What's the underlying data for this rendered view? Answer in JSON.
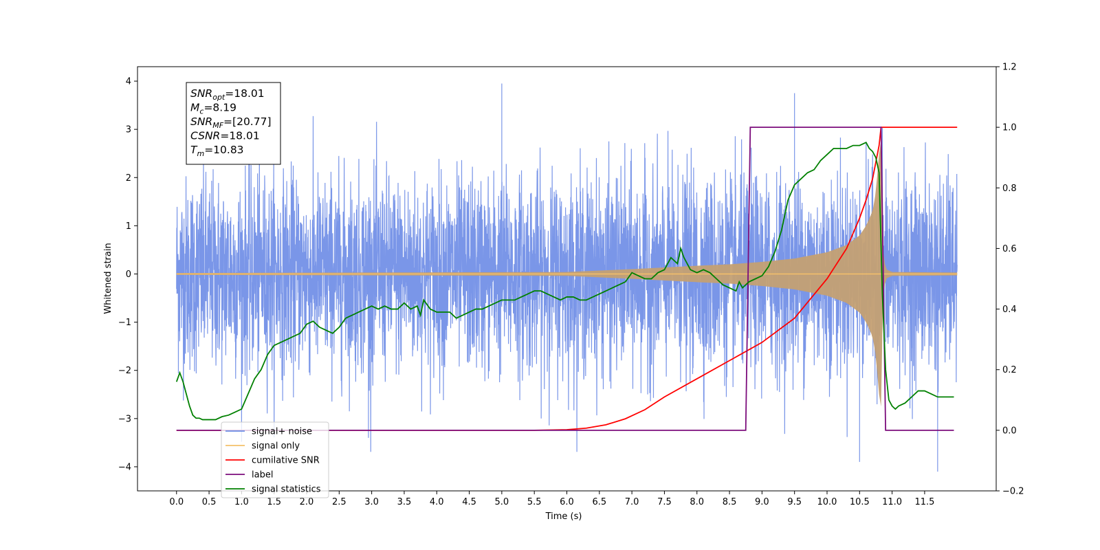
{
  "chart_data": {
    "type": "line",
    "title": "",
    "xlabel": "Time (s)",
    "ylabel_left": "Whitened strain",
    "ylabel_right": "",
    "xlim": [
      -0.6,
      12.6
    ],
    "ylim_left": [
      -4.5,
      4.3
    ],
    "ylim_right": [
      -0.2,
      1.2
    ],
    "x_ticks": [
      0.0,
      0.5,
      1.0,
      1.5,
      2.0,
      2.5,
      3.0,
      3.5,
      4.0,
      4.5,
      5.0,
      5.5,
      6.0,
      6.5,
      7.0,
      7.5,
      8.0,
      8.5,
      9.0,
      9.5,
      10.0,
      10.5,
      11.0,
      11.5
    ],
    "x_tick_labels": [
      "0.0",
      "0.5",
      "1.0",
      "1.5",
      "2.0",
      "2.5",
      "3.0",
      "3.5",
      "4.0",
      "4.5",
      "5.0",
      "5.5",
      "6.0",
      "6.5",
      "7.0",
      "7.5",
      "8.0",
      "8.5",
      "9.0",
      "9.5",
      "10.0",
      "10.5",
      "11.0",
      "11.5"
    ],
    "y_left_ticks": [
      -4,
      -3,
      -2,
      -1,
      0,
      1,
      2,
      3,
      4
    ],
    "y_left_tick_labels": [
      "−4",
      "−3",
      "−2",
      "−1",
      "0",
      "1",
      "2",
      "3",
      "4"
    ],
    "y_right_ticks": [
      -0.2,
      0.0,
      0.2,
      0.4,
      0.6,
      0.8,
      1.0,
      1.2
    ],
    "y_right_tick_labels": [
      "−0.2",
      "0.0",
      "0.2",
      "0.4",
      "0.6",
      "0.8",
      "1.0",
      "1.2"
    ],
    "grid": false,
    "legend_position": "lower-left",
    "annotation": {
      "lines": [
        {
          "sym": "SNR",
          "sub": "opt",
          "val": "=18.01"
        },
        {
          "sym": "M",
          "sub": "c",
          "val": "=8.19"
        },
        {
          "sym": "SNR",
          "sub": "MF",
          "val": "=[20.77]"
        },
        {
          "sym": "CSNR",
          "sub": "",
          "val": "=18.01"
        },
        {
          "sym": "T",
          "sub": "m",
          "val": "=10.83"
        }
      ]
    },
    "series": [
      {
        "name": "signal+ noise",
        "axis": "left",
        "color": "#6c8be5",
        "kind": "noise",
        "x_range": [
          0.0,
          12.0
        ],
        "sigma": 1.0,
        "shown_min": -4.1,
        "shown_max": 3.95,
        "notable_peaks": [
          [
            5.0,
            3.95
          ],
          [
            9.5,
            3.75
          ],
          [
            10.85,
            3.05
          ],
          [
            11.7,
            -4.1
          ],
          [
            10.5,
            -3.9
          ],
          [
            2.95,
            -3.4
          ]
        ]
      },
      {
        "name": "signal only",
        "axis": "left",
        "color": "#f5c06a",
        "kind": "chirp",
        "merger_time": 10.83,
        "envelope": {
          "x": [
            0.0,
            6.0,
            7.0,
            8.0,
            8.5,
            9.0,
            9.5,
            10.0,
            10.3,
            10.5,
            10.6,
            10.7,
            10.75,
            10.8,
            10.83,
            10.86,
            10.9,
            11.0,
            12.0
          ],
          "y": [
            0.02,
            0.04,
            0.1,
            0.17,
            0.2,
            0.25,
            0.32,
            0.45,
            0.6,
            0.8,
            1.0,
            1.3,
            1.7,
            2.5,
            2.75,
            0.5,
            0.1,
            0.04,
            0.03
          ]
        }
      },
      {
        "name": "cumilative SNR",
        "axis": "right",
        "color": "#ff0000",
        "x": [
          0.0,
          5.5,
          6.0,
          6.3,
          6.6,
          6.9,
          7.2,
          7.5,
          8.0,
          8.5,
          9.0,
          9.5,
          10.0,
          10.3,
          10.5,
          10.6,
          10.7,
          10.8,
          10.83,
          12.0
        ],
        "y": [
          0.0,
          0.0,
          0.002,
          0.007,
          0.018,
          0.038,
          0.068,
          0.11,
          0.17,
          0.23,
          0.29,
          0.37,
          0.5,
          0.6,
          0.7,
          0.76,
          0.83,
          0.94,
          1.0,
          1.0
        ]
      },
      {
        "name": "label",
        "axis": "right",
        "color": "#7b0c7b",
        "x": [
          0.0,
          8.75,
          8.82,
          10.83,
          10.9,
          11.95
        ],
        "y": [
          0.0,
          0.0,
          1.0,
          1.0,
          0.0,
          0.0
        ]
      },
      {
        "name": "signal statistics",
        "axis": "right",
        "color": "#008000",
        "x": [
          0.0,
          0.05,
          0.1,
          0.15,
          0.2,
          0.25,
          0.3,
          0.35,
          0.4,
          0.5,
          0.6,
          0.7,
          0.8,
          0.9,
          1.0,
          1.1,
          1.2,
          1.3,
          1.4,
          1.5,
          1.6,
          1.7,
          1.8,
          1.9,
          2.0,
          2.1,
          2.2,
          2.3,
          2.4,
          2.5,
          2.6,
          2.7,
          2.8,
          2.9,
          3.0,
          3.1,
          3.2,
          3.3,
          3.4,
          3.5,
          3.6,
          3.7,
          3.75,
          3.8,
          3.9,
          4.0,
          4.1,
          4.2,
          4.3,
          4.4,
          4.5,
          4.6,
          4.7,
          4.8,
          4.9,
          5.0,
          5.1,
          5.2,
          5.3,
          5.4,
          5.5,
          5.6,
          5.7,
          5.8,
          5.9,
          6.0,
          6.1,
          6.2,
          6.3,
          6.4,
          6.5,
          6.6,
          6.7,
          6.8,
          6.9,
          7.0,
          7.1,
          7.2,
          7.3,
          7.4,
          7.5,
          7.55,
          7.6,
          7.7,
          7.75,
          7.8,
          7.9,
          8.0,
          8.1,
          8.2,
          8.3,
          8.4,
          8.5,
          8.6,
          8.65,
          8.7,
          8.8,
          8.9,
          9.0,
          9.1,
          9.2,
          9.3,
          9.4,
          9.5,
          9.6,
          9.7,
          9.8,
          9.9,
          10.0,
          10.1,
          10.2,
          10.3,
          10.4,
          10.5,
          10.6,
          10.65,
          10.7,
          10.75,
          10.8,
          10.85,
          10.9,
          10.95,
          11.0,
          11.05,
          11.1,
          11.2,
          11.3,
          11.4,
          11.5,
          11.6,
          11.7,
          11.8,
          11.9,
          11.95
        ],
        "y": [
          0.16,
          0.19,
          0.16,
          0.12,
          0.08,
          0.05,
          0.04,
          0.04,
          0.035,
          0.035,
          0.035,
          0.045,
          0.05,
          0.06,
          0.07,
          0.12,
          0.17,
          0.2,
          0.25,
          0.28,
          0.29,
          0.3,
          0.31,
          0.32,
          0.35,
          0.36,
          0.34,
          0.33,
          0.32,
          0.34,
          0.37,
          0.38,
          0.39,
          0.4,
          0.41,
          0.4,
          0.41,
          0.4,
          0.4,
          0.42,
          0.4,
          0.41,
          0.38,
          0.43,
          0.4,
          0.39,
          0.39,
          0.39,
          0.37,
          0.38,
          0.39,
          0.4,
          0.4,
          0.41,
          0.42,
          0.43,
          0.43,
          0.43,
          0.44,
          0.45,
          0.46,
          0.46,
          0.45,
          0.44,
          0.43,
          0.44,
          0.44,
          0.43,
          0.43,
          0.44,
          0.45,
          0.46,
          0.47,
          0.48,
          0.49,
          0.52,
          0.51,
          0.5,
          0.5,
          0.52,
          0.53,
          0.55,
          0.57,
          0.55,
          0.6,
          0.57,
          0.53,
          0.52,
          0.53,
          0.52,
          0.5,
          0.48,
          0.47,
          0.46,
          0.49,
          0.47,
          0.49,
          0.5,
          0.51,
          0.54,
          0.59,
          0.66,
          0.76,
          0.81,
          0.83,
          0.85,
          0.86,
          0.89,
          0.91,
          0.93,
          0.93,
          0.93,
          0.94,
          0.94,
          0.95,
          0.93,
          0.92,
          0.9,
          0.85,
          0.45,
          0.2,
          0.1,
          0.08,
          0.07,
          0.08,
          0.09,
          0.11,
          0.13,
          0.13,
          0.12,
          0.11,
          0.11,
          0.11,
          0.11
        ]
      }
    ]
  }
}
